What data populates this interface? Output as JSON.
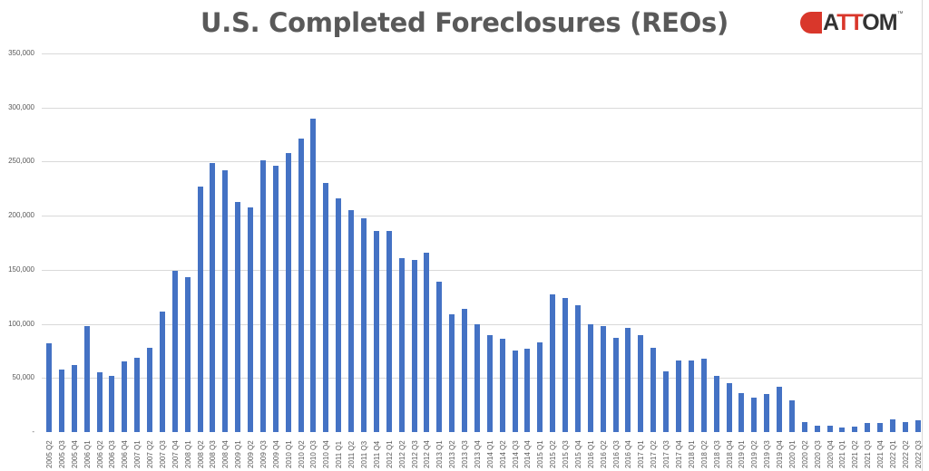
{
  "chart_data": {
    "type": "bar",
    "title": "U.S. Completed Foreclosures (REOs)",
    "xlabel": "",
    "ylabel": "",
    "ylim": [
      0,
      350000
    ],
    "yticks": [
      "-",
      "50,000",
      "100,000",
      "150,000",
      "200,000",
      "250,000",
      "300,000",
      "350,000"
    ],
    "grid": true,
    "legend": "none",
    "color": "#4472c4",
    "categories": [
      "2005 Q2",
      "2005 Q3",
      "2005 Q4",
      "2006 Q1",
      "2006 Q2",
      "2006 Q3",
      "2006 Q4",
      "2007 Q1",
      "2007 Q2",
      "2007 Q3",
      "2007 Q4",
      "2008 Q1",
      "2008 Q2",
      "2008 Q3",
      "2008 Q4",
      "2009 Q1",
      "2009 Q2",
      "2009 Q3",
      "2009 Q4",
      "2010 Q1",
      "2010 Q2",
      "2010 Q3",
      "2010 Q4",
      "2011 Q1",
      "2011 Q2",
      "2011 Q3",
      "2011 Q4",
      "2012 Q1",
      "2012 Q2",
      "2012 Q3",
      "2012 Q4",
      "2013 Q1",
      "2013 Q2",
      "2013 Q3",
      "2013 Q4",
      "2014 Q1",
      "2014 Q2",
      "2014 Q3",
      "2014 Q4",
      "2015 Q1",
      "2015 Q2",
      "2015 Q3",
      "2015 Q4",
      "2016 Q1",
      "2016 Q2",
      "2016 Q3",
      "2016 Q4",
      "2017 Q1",
      "2017 Q2",
      "2017 Q3",
      "2017 Q4",
      "2018 Q1",
      "2018 Q2",
      "2018 Q3",
      "2018 Q4",
      "2019 Q1",
      "2019 Q2",
      "2019 Q3",
      "2019 Q4",
      "2020 Q1",
      "2020 Q2",
      "2020 Q3",
      "2020 Q4",
      "2021 Q1",
      "2021 Q2",
      "2021 Q3",
      "2021 Q4",
      "2022 Q1",
      "2022 Q2",
      "2022 Q3"
    ],
    "values": [
      82000,
      58000,
      62000,
      98000,
      55000,
      52000,
      65000,
      69000,
      78000,
      111000,
      149000,
      143000,
      227000,
      249000,
      242000,
      213000,
      208000,
      251000,
      246000,
      258000,
      271000,
      290000,
      230000,
      216000,
      205000,
      198000,
      186000,
      186000,
      161000,
      159000,
      166000,
      139000,
      109000,
      114000,
      100000,
      90000,
      86000,
      75000,
      77000,
      83000,
      127000,
      124000,
      117000,
      100000,
      98000,
      87000,
      96000,
      90000,
      78000,
      56000,
      66000,
      66000,
      68000,
      52000,
      45000,
      36000,
      32000,
      35000,
      42000,
      29000,
      9000,
      6000,
      6000,
      4000,
      5000,
      8000,
      8000,
      12000,
      9000,
      11000
    ]
  },
  "logo": {
    "prefix": "A",
    "mid": "TT",
    "suffix": "OM",
    "tm": "™"
  }
}
